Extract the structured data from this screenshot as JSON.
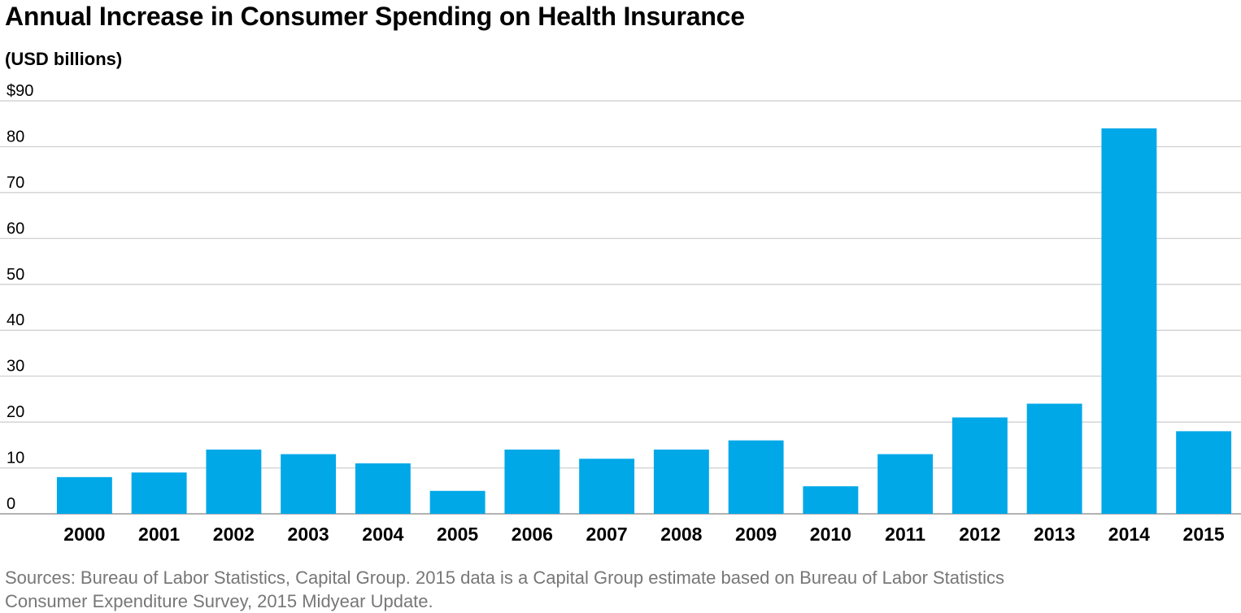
{
  "title": "Annual Increase in Consumer Spending on Health Insurance",
  "unit_label": "(USD billions)",
  "source_line1": "Sources: Bureau of Labor Statistics, Capital Group. 2015 data is a Capital Group estimate based on Bureau of Labor Statistics",
  "source_line2": "Consumer Expenditure Survey, 2015 Midyear Update.",
  "colors": {
    "bar": "#00A8E8",
    "grid": "#cccccc",
    "axis": "#999999"
  },
  "chart_data": {
    "type": "bar",
    "title": "Annual Increase in Consumer Spending on Health Insurance",
    "ylabel": "(USD billions)",
    "xlabel": "",
    "categories": [
      "2000",
      "2001",
      "2002",
      "2003",
      "2004",
      "2005",
      "2006",
      "2007",
      "2008",
      "2009",
      "2010",
      "2011",
      "2012",
      "2013",
      "2014",
      "2015"
    ],
    "values": [
      8,
      9,
      14,
      13,
      11,
      5,
      14,
      12,
      14,
      16,
      6,
      13,
      21,
      24,
      84,
      18
    ],
    "ylim": [
      0,
      90
    ],
    "yticks": [
      0,
      10,
      20,
      30,
      40,
      50,
      60,
      70,
      80,
      90
    ],
    "ytick_labels": [
      "0",
      "10",
      "20",
      "30",
      "40",
      "50",
      "60",
      "70",
      "80",
      "$90"
    ],
    "grid": true,
    "legend": "none"
  }
}
